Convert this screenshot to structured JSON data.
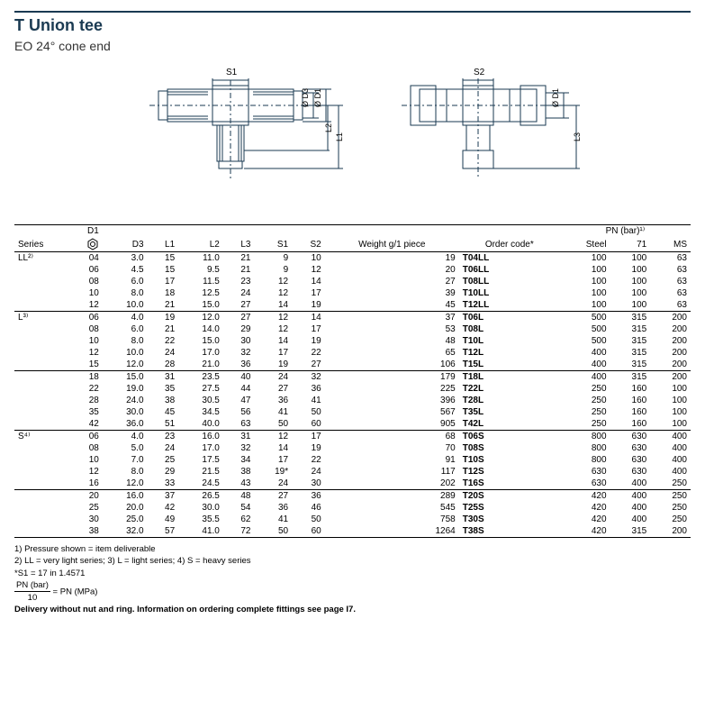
{
  "header": {
    "title": "T  Union tee",
    "subtitle": "EO 24° cone end"
  },
  "diagram": {
    "labels": {
      "s1": "S1",
      "s2": "S2",
      "d3": "Ø D3",
      "d1": "Ø D1",
      "l1": "L1",
      "l2": "L2",
      "l3": "L3"
    },
    "stroke": "#1a3a52"
  },
  "table": {
    "headers": {
      "series": "Series",
      "d1": "D1",
      "d3": "D3",
      "l1": "L1",
      "l2": "L2",
      "l3": "L3",
      "s1": "S1",
      "s2": "S2",
      "weight": "Weight g/1 piece",
      "order": "Order code*",
      "pn": "PN (bar)¹⁾",
      "steel": "Steel",
      "c71": "71",
      "ms": "MS"
    },
    "groups": [
      {
        "series": "LL²⁾",
        "rows": [
          {
            "d1": "04",
            "d3": "3.0",
            "l1": "15",
            "l2": "11.0",
            "l3": "21",
            "s1": "9",
            "s2": "10",
            "w": "19",
            "code": "T04LL",
            "st": "100",
            "c71": "100",
            "ms": "63"
          },
          {
            "d1": "06",
            "d3": "4.5",
            "l1": "15",
            "l2": "9.5",
            "l3": "21",
            "s1": "9",
            "s2": "12",
            "w": "20",
            "code": "T06LL",
            "st": "100",
            "c71": "100",
            "ms": "63"
          },
          {
            "d1": "08",
            "d3": "6.0",
            "l1": "17",
            "l2": "11.5",
            "l3": "23",
            "s1": "12",
            "s2": "14",
            "w": "27",
            "code": "T08LL",
            "st": "100",
            "c71": "100",
            "ms": "63"
          },
          {
            "d1": "10",
            "d3": "8.0",
            "l1": "18",
            "l2": "12.5",
            "l3": "24",
            "s1": "12",
            "s2": "17",
            "w": "39",
            "code": "T10LL",
            "st": "100",
            "c71": "100",
            "ms": "63"
          },
          {
            "d1": "12",
            "d3": "10.0",
            "l1": "21",
            "l2": "15.0",
            "l3": "27",
            "s1": "14",
            "s2": "19",
            "w": "45",
            "code": "T12LL",
            "st": "100",
            "c71": "100",
            "ms": "63"
          }
        ]
      },
      {
        "series": "L³⁾",
        "rows": [
          {
            "d1": "06",
            "d3": "4.0",
            "l1": "19",
            "l2": "12.0",
            "l3": "27",
            "s1": "12",
            "s2": "14",
            "w": "37",
            "code": "T06L",
            "st": "500",
            "c71": "315",
            "ms": "200"
          },
          {
            "d1": "08",
            "d3": "6.0",
            "l1": "21",
            "l2": "14.0",
            "l3": "29",
            "s1": "12",
            "s2": "17",
            "w": "53",
            "code": "T08L",
            "st": "500",
            "c71": "315",
            "ms": "200"
          },
          {
            "d1": "10",
            "d3": "8.0",
            "l1": "22",
            "l2": "15.0",
            "l3": "30",
            "s1": "14",
            "s2": "19",
            "w": "48",
            "code": "T10L",
            "st": "500",
            "c71": "315",
            "ms": "200"
          },
          {
            "d1": "12",
            "d3": "10.0",
            "l1": "24",
            "l2": "17.0",
            "l3": "32",
            "s1": "17",
            "s2": "22",
            "w": "65",
            "code": "T12L",
            "st": "400",
            "c71": "315",
            "ms": "200"
          },
          {
            "d1": "15",
            "d3": "12.0",
            "l1": "28",
            "l2": "21.0",
            "l3": "36",
            "s1": "19",
            "s2": "27",
            "w": "106",
            "code": "T15L",
            "st": "400",
            "c71": "315",
            "ms": "200",
            "subline": true
          },
          {
            "d1": "18",
            "d3": "15.0",
            "l1": "31",
            "l2": "23.5",
            "l3": "40",
            "s1": "24",
            "s2": "32",
            "w": "179",
            "code": "T18L",
            "st": "400",
            "c71": "315",
            "ms": "200"
          },
          {
            "d1": "22",
            "d3": "19.0",
            "l1": "35",
            "l2": "27.5",
            "l3": "44",
            "s1": "27",
            "s2": "36",
            "w": "225",
            "code": "T22L",
            "st": "250",
            "c71": "160",
            "ms": "100"
          },
          {
            "d1": "28",
            "d3": "24.0",
            "l1": "38",
            "l2": "30.5",
            "l3": "47",
            "s1": "36",
            "s2": "41",
            "w": "396",
            "code": "T28L",
            "st": "250",
            "c71": "160",
            "ms": "100"
          },
          {
            "d1": "35",
            "d3": "30.0",
            "l1": "45",
            "l2": "34.5",
            "l3": "56",
            "s1": "41",
            "s2": "50",
            "w": "567",
            "code": "T35L",
            "st": "250",
            "c71": "160",
            "ms": "100"
          },
          {
            "d1": "42",
            "d3": "36.0",
            "l1": "51",
            "l2": "40.0",
            "l3": "63",
            "s1": "50",
            "s2": "60",
            "w": "905",
            "code": "T42L",
            "st": "250",
            "c71": "160",
            "ms": "100"
          }
        ]
      },
      {
        "series": "S⁴⁾",
        "rows": [
          {
            "d1": "06",
            "d3": "4.0",
            "l1": "23",
            "l2": "16.0",
            "l3": "31",
            "s1": "12",
            "s2": "17",
            "w": "68",
            "code": "T06S",
            "st": "800",
            "c71": "630",
            "ms": "400"
          },
          {
            "d1": "08",
            "d3": "5.0",
            "l1": "24",
            "l2": "17.0",
            "l3": "32",
            "s1": "14",
            "s2": "19",
            "w": "70",
            "code": "T08S",
            "st": "800",
            "c71": "630",
            "ms": "400"
          },
          {
            "d1": "10",
            "d3": "7.0",
            "l1": "25",
            "l2": "17.5",
            "l3": "34",
            "s1": "17",
            "s2": "22",
            "w": "91",
            "code": "T10S",
            "st": "800",
            "c71": "630",
            "ms": "400"
          },
          {
            "d1": "12",
            "d3": "8.0",
            "l1": "29",
            "l2": "21.5",
            "l3": "38",
            "s1": "19*",
            "s2": "24",
            "w": "117",
            "code": "T12S",
            "st": "630",
            "c71": "630",
            "ms": "400"
          },
          {
            "d1": "16",
            "d3": "12.0",
            "l1": "33",
            "l2": "24.5",
            "l3": "43",
            "s1": "24",
            "s2": "30",
            "w": "202",
            "code": "T16S",
            "st": "630",
            "c71": "400",
            "ms": "250",
            "subline": true
          },
          {
            "d1": "20",
            "d3": "16.0",
            "l1": "37",
            "l2": "26.5",
            "l3": "48",
            "s1": "27",
            "s2": "36",
            "w": "289",
            "code": "T20S",
            "st": "420",
            "c71": "400",
            "ms": "250"
          },
          {
            "d1": "25",
            "d3": "20.0",
            "l1": "42",
            "l2": "30.0",
            "l3": "54",
            "s1": "36",
            "s2": "46",
            "w": "545",
            "code": "T25S",
            "st": "420",
            "c71": "400",
            "ms": "250"
          },
          {
            "d1": "30",
            "d3": "25.0",
            "l1": "49",
            "l2": "35.5",
            "l3": "62",
            "s1": "41",
            "s2": "50",
            "w": "758",
            "code": "T30S",
            "st": "420",
            "c71": "400",
            "ms": "250"
          },
          {
            "d1": "38",
            "d3": "32.0",
            "l1": "57",
            "l2": "41.0",
            "l3": "72",
            "s1": "50",
            "s2": "60",
            "w": "1264",
            "code": "T38S",
            "st": "420",
            "c71": "315",
            "ms": "200"
          }
        ]
      }
    ]
  },
  "footnotes": {
    "f1": "1) Pressure shown = item deliverable",
    "f2": "2) LL = very light series; 3) L = light series; 4) S = heavy series",
    "f3": "*S1 = 17 in 1.4571",
    "frac_top": "PN (bar)",
    "frac_bot": "10",
    "frac_eq": "= PN (MPa)",
    "delivery": "Delivery without nut and ring. Information on ordering complete fittings see page I7."
  }
}
